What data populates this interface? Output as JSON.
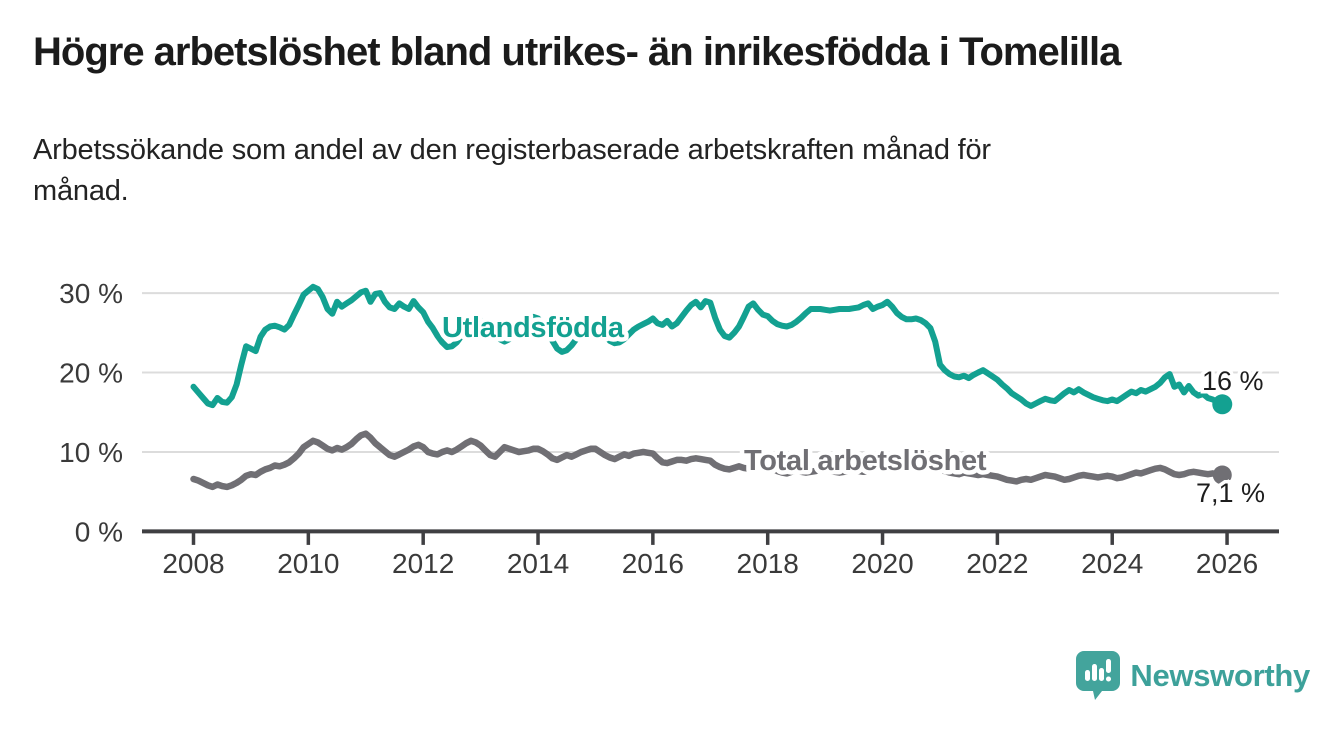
{
  "header": {
    "title": "Högre arbetslöshet bland utrikes- än inrikesfödda i Tomelilla",
    "subtitle_line1": "Arbetssökande som andel av den registerbaserade arbetskraften månad för",
    "subtitle_line2": "månad."
  },
  "chart_data": {
    "type": "line",
    "x_start_year": 2008,
    "points_per_year": 12,
    "x_tick_labels": [
      "2008",
      "2010",
      "2012",
      "2014",
      "2016",
      "2018",
      "2020",
      "2022",
      "2024",
      "2026"
    ],
    "y_tick_values": [
      0,
      10,
      20,
      30
    ],
    "y_tick_labels": [
      "0 %",
      "10 %",
      "20 %",
      "30 %"
    ],
    "ylim": [
      0,
      32
    ],
    "grid": "horizontal",
    "legend_position": "inline-labels",
    "series": [
      {
        "name": "Utlandsfödda",
        "color": "#13a191",
        "end_label": "16 %",
        "values": [
          18.2,
          17.5,
          16.8,
          16.1,
          15.9,
          16.8,
          16.3,
          16.2,
          16.9,
          18.5,
          21.0,
          23.3,
          23.0,
          22.7,
          24.5,
          25.4,
          25.8,
          25.9,
          25.7,
          25.4,
          26.0,
          27.3,
          28.5,
          29.8,
          30.3,
          30.8,
          30.5,
          29.5,
          28.0,
          27.4,
          28.9,
          28.3,
          28.7,
          29.1,
          29.6,
          30.1,
          30.3,
          28.9,
          29.9,
          30.0,
          28.9,
          28.2,
          28.0,
          28.7,
          28.3,
          28.0,
          29.0,
          28.2,
          27.6,
          26.4,
          25.6,
          24.6,
          23.8,
          23.2,
          23.3,
          23.8,
          24.6,
          25.4,
          26.0,
          26.4,
          26.6,
          26.0,
          25.2,
          24.6,
          24.2,
          23.9,
          24.2,
          24.8,
          25.4,
          26.0,
          26.6,
          27.0,
          26.8,
          26.2,
          25.2,
          24.0,
          23.0,
          22.6,
          22.8,
          23.4,
          24.2,
          25.0,
          25.6,
          26.0,
          26.2,
          25.6,
          24.8,
          24.0,
          23.7,
          23.8,
          24.2,
          24.8,
          25.4,
          25.8,
          26.1,
          26.4,
          26.8,
          26.2,
          26.0,
          26.5,
          25.8,
          26.2,
          27.0,
          27.8,
          28.5,
          28.9,
          28.2,
          29.0,
          28.8,
          26.9,
          25.4,
          24.6,
          24.4,
          25.0,
          25.8,
          27.0,
          28.3,
          28.7,
          27.9,
          27.3,
          27.1,
          26.5,
          26.1,
          25.9,
          25.8,
          26.0,
          26.4,
          26.9,
          27.5,
          28.0,
          28.0,
          28.0,
          27.9,
          27.8,
          27.9,
          28.0,
          28.0,
          28.0,
          28.1,
          28.2,
          28.5,
          28.7,
          28.0,
          28.3,
          28.5,
          28.9,
          28.3,
          27.5,
          27.0,
          26.7,
          26.7,
          26.8,
          26.6,
          26.2,
          25.6,
          23.9,
          21.0,
          20.3,
          19.8,
          19.5,
          19.4,
          19.6,
          19.3,
          19.7,
          20.0,
          20.3,
          19.9,
          19.5,
          19.1,
          18.5,
          18.0,
          17.4,
          17.0,
          16.6,
          16.1,
          15.8,
          16.1,
          16.4,
          16.7,
          16.5,
          16.4,
          16.9,
          17.4,
          17.8,
          17.5,
          17.9,
          17.5,
          17.2,
          16.9,
          16.7,
          16.5,
          16.4,
          16.6,
          16.4,
          16.8,
          17.2,
          17.6,
          17.4,
          17.8,
          17.6,
          17.9,
          18.2,
          18.7,
          19.4,
          19.8,
          18.2,
          18.5,
          17.5,
          18.3,
          17.5,
          17.1,
          17.3,
          16.8,
          16.6,
          16.3,
          16.0
        ]
      },
      {
        "name": "Total arbetslöshet",
        "color": "#706f74",
        "end_label": "7,1 %",
        "values": [
          6.6,
          6.4,
          6.1,
          5.8,
          5.6,
          5.9,
          5.7,
          5.6,
          5.8,
          6.1,
          6.5,
          7.0,
          7.2,
          7.1,
          7.5,
          7.8,
          8.0,
          8.3,
          8.2,
          8.4,
          8.7,
          9.2,
          9.8,
          10.6,
          11.0,
          11.4,
          11.2,
          10.8,
          10.4,
          10.2,
          10.5,
          10.3,
          10.6,
          11.0,
          11.6,
          12.1,
          12.3,
          11.8,
          11.1,
          10.6,
          10.1,
          9.6,
          9.4,
          9.7,
          10.0,
          10.3,
          10.7,
          10.9,
          10.6,
          10.0,
          9.8,
          9.7,
          10.0,
          10.2,
          10.0,
          10.3,
          10.7,
          11.1,
          11.4,
          11.2,
          10.8,
          10.2,
          9.6,
          9.4,
          10.0,
          10.6,
          10.4,
          10.2,
          10.0,
          10.1,
          10.2,
          10.4,
          10.4,
          10.1,
          9.7,
          9.2,
          9.0,
          9.3,
          9.6,
          9.4,
          9.7,
          10.0,
          10.2,
          10.4,
          10.4,
          10.0,
          9.6,
          9.3,
          9.1,
          9.4,
          9.7,
          9.5,
          9.8,
          9.9,
          10.0,
          9.9,
          9.8,
          9.2,
          8.7,
          8.6,
          8.8,
          9.0,
          9.0,
          8.9,
          9.1,
          9.2,
          9.1,
          9.0,
          8.9,
          8.4,
          8.1,
          7.9,
          7.8,
          8.0,
          8.2,
          8.0,
          7.9,
          8.0,
          8.1,
          8.2,
          8.1,
          7.9,
          7.6,
          7.4,
          7.3,
          7.5,
          7.7,
          7.5,
          7.4,
          7.5,
          7.6,
          7.8,
          7.8,
          7.6,
          7.5,
          7.4,
          7.5,
          7.6,
          7.8,
          7.6,
          7.5,
          7.6,
          7.7,
          7.9,
          8.0,
          8.1,
          8.5,
          8.8,
          8.9,
          8.8,
          8.9,
          8.7,
          8.5,
          8.3,
          8.1,
          8.0,
          7.8,
          7.6,
          7.4,
          7.3,
          7.2,
          7.4,
          7.3,
          7.2,
          7.1,
          7.2,
          7.1,
          7.0,
          6.9,
          6.7,
          6.5,
          6.4,
          6.3,
          6.5,
          6.6,
          6.5,
          6.7,
          6.9,
          7.1,
          7.0,
          6.9,
          6.7,
          6.5,
          6.6,
          6.8,
          7.0,
          7.1,
          7.0,
          6.9,
          6.8,
          6.9,
          7.0,
          6.9,
          6.7,
          6.8,
          7.0,
          7.2,
          7.4,
          7.3,
          7.5,
          7.7,
          7.9,
          8.0,
          7.8,
          7.5,
          7.2,
          7.1,
          7.2,
          7.4,
          7.5,
          7.4,
          7.3,
          7.2,
          7.3,
          7.2,
          7.1
        ]
      }
    ],
    "colors": {
      "grid": "#dcdcdc",
      "axis": "#3f3f42",
      "axis_text": "#3a3a3a",
      "value_label_text": "#1d1d1d"
    }
  },
  "branding": {
    "logo_text": "Newsworthy",
    "logo_text_color": "#3da19a",
    "logo_bubble_color": "#43a49c"
  }
}
